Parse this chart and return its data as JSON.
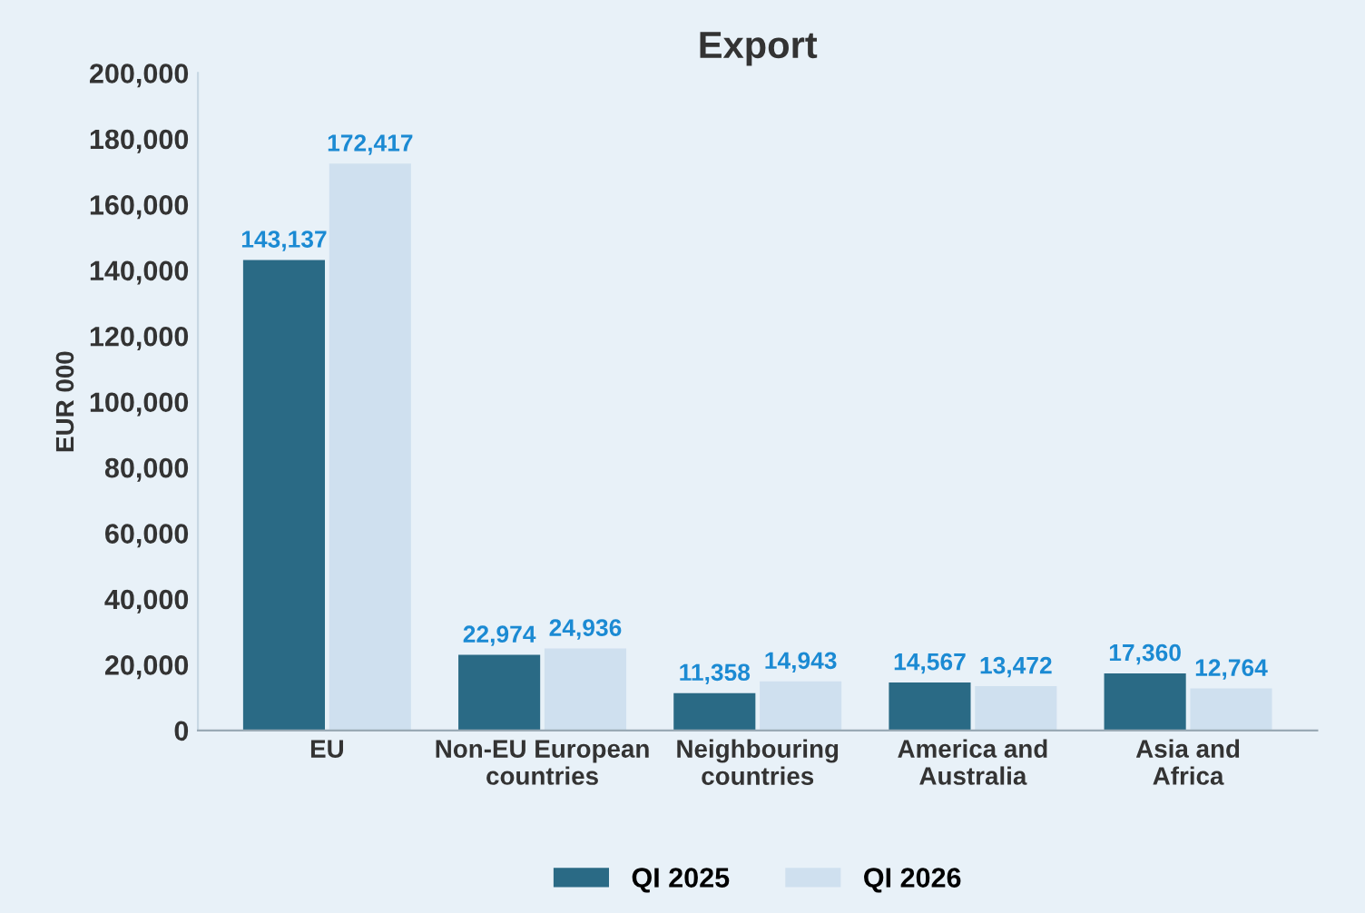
{
  "chart_data": {
    "type": "bar",
    "title": "Export",
    "ylabel": "EUR 000",
    "categories": [
      "EU",
      "Non-EU European\ncountries",
      "Neighbouring\ncountries",
      "America and\nAustralia",
      "Asia and\nAfrica"
    ],
    "series": [
      {
        "name": "QI 2025",
        "color": "#2a6a85",
        "values": [
          143137,
          22974,
          11358,
          14567,
          17360
        ],
        "value_labels": [
          "143,137",
          "22,974",
          "11,358",
          "14,567",
          "17,360"
        ]
      },
      {
        "name": "QI 2026",
        "color": "#cfe0ef",
        "values": [
          172417,
          24936,
          14943,
          13472,
          12764
        ],
        "value_labels": [
          "172,417",
          "24,936",
          "14,943",
          "13,472",
          "12,764"
        ]
      }
    ],
    "ylim": [
      0,
      200000
    ],
    "yticks": [
      {
        "value": 0,
        "label": "0"
      },
      {
        "value": 20000,
        "label": "20,000"
      },
      {
        "value": 40000,
        "label": "40,000"
      },
      {
        "value": 60000,
        "label": "60,000"
      },
      {
        "value": 80000,
        "label": "80,000"
      },
      {
        "value": 100000,
        "label": "100,000"
      },
      {
        "value": 120000,
        "label": "120,000"
      },
      {
        "value": 140000,
        "label": "140,000"
      },
      {
        "value": 160000,
        "label": "160,000"
      },
      {
        "value": 180000,
        "label": "180,000"
      },
      {
        "value": 200000,
        "label": "200,000"
      }
    ],
    "grid": false,
    "legend": "bottom"
  }
}
